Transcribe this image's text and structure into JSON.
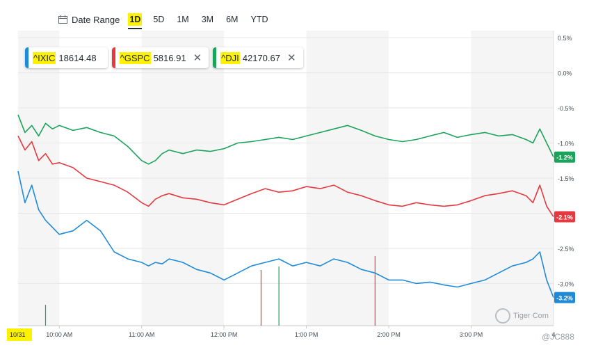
{
  "toolbar": {
    "date_range_label": "Date Range",
    "ranges": [
      "1D",
      "5D",
      "1M",
      "3M",
      "6M",
      "YTD"
    ],
    "active_range": "1D"
  },
  "chips": [
    {
      "symbol": "^IXIC",
      "value": "18614.48",
      "color": "#1f8ad8",
      "closable": false
    },
    {
      "symbol": "^GSPC",
      "value": "5816.91",
      "color": "#e5393f",
      "closable": true
    },
    {
      "symbol": "^DJI",
      "value": "42170.67",
      "color": "#1aa35a",
      "closable": true
    }
  ],
  "watermark": {
    "brand": "Tiger Com",
    "user": "@JC888"
  },
  "chart_data": {
    "type": "line",
    "title": "",
    "xlabel": "",
    "ylabel": "",
    "ylim": [
      -3.6,
      0.6
    ],
    "xlim": [
      "09:30",
      "16:00"
    ],
    "y_ticks": [
      0.5,
      0.0,
      -0.5,
      -1.0,
      -1.5,
      -2.0,
      -2.5,
      -3.0
    ],
    "y_tick_labels": [
      "0.5%",
      "0.0%",
      "-0.5%",
      "-1.0%",
      "-1.5%",
      "-2.0%",
      "-2.5%",
      "-3.0%"
    ],
    "x_ticks": [
      "10:00",
      "11:00",
      "12:00",
      "13:00",
      "14:00",
      "15:00"
    ],
    "x_tick_labels": [
      "10:00 AM",
      "11:00 AM",
      "12:00 PM",
      "1:00 PM",
      "2:00 PM",
      "3:00 PM"
    ],
    "x_start_label": "10/31",
    "x_end_label": "4",
    "shaded_hours": [
      "09:30-10:00",
      "11:00-12:00",
      "13:00-14:00",
      "15:00-16:00"
    ],
    "legend": "top-left",
    "series": [
      {
        "name": "^DJI",
        "color": "#1aa35a",
        "end_label": "-1.2%",
        "x": [
          "09:30",
          "09:35",
          "09:40",
          "09:45",
          "09:50",
          "09:55",
          "10:00",
          "10:10",
          "10:20",
          "10:30",
          "10:40",
          "10:50",
          "11:00",
          "11:05",
          "11:10",
          "11:15",
          "11:20",
          "11:30",
          "11:40",
          "11:50",
          "12:00",
          "12:10",
          "12:20",
          "12:30",
          "12:40",
          "12:50",
          "13:00",
          "13:10",
          "13:20",
          "13:30",
          "13:40",
          "13:50",
          "14:00",
          "14:10",
          "14:20",
          "14:30",
          "14:40",
          "14:50",
          "15:00",
          "15:10",
          "15:20",
          "15:30",
          "15:40",
          "15:45",
          "15:50",
          "15:55",
          "16:00"
        ],
        "values": [
          -0.6,
          -0.85,
          -0.75,
          -0.9,
          -0.72,
          -0.8,
          -0.75,
          -0.82,
          -0.78,
          -0.85,
          -0.9,
          -1.05,
          -1.25,
          -1.3,
          -1.25,
          -1.15,
          -1.1,
          -1.15,
          -1.1,
          -1.12,
          -1.08,
          -1.0,
          -0.98,
          -0.95,
          -0.92,
          -0.95,
          -0.9,
          -0.85,
          -0.8,
          -0.75,
          -0.82,
          -0.9,
          -0.95,
          -0.98,
          -0.95,
          -0.9,
          -0.85,
          -0.92,
          -0.88,
          -0.85,
          -0.9,
          -0.88,
          -0.95,
          -1.0,
          -0.8,
          -1.0,
          -1.2
        ]
      },
      {
        "name": "^GSPC",
        "color": "#e5393f",
        "end_label": "-2.1%",
        "x": [
          "09:30",
          "09:35",
          "09:40",
          "09:45",
          "09:50",
          "09:55",
          "10:00",
          "10:10",
          "10:20",
          "10:30",
          "10:40",
          "10:50",
          "11:00",
          "11:05",
          "11:10",
          "11:15",
          "11:20",
          "11:30",
          "11:40",
          "11:50",
          "12:00",
          "12:10",
          "12:20",
          "12:30",
          "12:40",
          "12:50",
          "13:00",
          "13:10",
          "13:20",
          "13:30",
          "13:40",
          "13:50",
          "14:00",
          "14:10",
          "14:20",
          "14:30",
          "14:40",
          "14:50",
          "15:00",
          "15:10",
          "15:20",
          "15:30",
          "15:40",
          "15:45",
          "15:50",
          "15:55",
          "16:00"
        ],
        "values": [
          -0.9,
          -1.1,
          -0.98,
          -1.25,
          -1.15,
          -1.3,
          -1.28,
          -1.35,
          -1.5,
          -1.55,
          -1.6,
          -1.7,
          -1.85,
          -1.9,
          -1.8,
          -1.75,
          -1.72,
          -1.78,
          -1.8,
          -1.85,
          -1.88,
          -1.8,
          -1.72,
          -1.65,
          -1.7,
          -1.68,
          -1.62,
          -1.65,
          -1.6,
          -1.7,
          -1.75,
          -1.82,
          -1.88,
          -1.9,
          -1.85,
          -1.88,
          -1.9,
          -1.88,
          -1.82,
          -1.75,
          -1.72,
          -1.68,
          -1.75,
          -1.85,
          -1.6,
          -1.9,
          -2.05
        ]
      },
      {
        "name": "^IXIC",
        "color": "#1f8ad8",
        "end_label": "-3.2%",
        "x": [
          "09:30",
          "09:35",
          "09:40",
          "09:45",
          "09:50",
          "09:55",
          "10:00",
          "10:10",
          "10:20",
          "10:30",
          "10:40",
          "10:50",
          "11:00",
          "11:05",
          "11:10",
          "11:15",
          "11:20",
          "11:30",
          "11:40",
          "11:50",
          "12:00",
          "12:10",
          "12:20",
          "12:30",
          "12:40",
          "12:50",
          "13:00",
          "13:10",
          "13:20",
          "13:30",
          "13:40",
          "13:50",
          "14:00",
          "14:10",
          "14:20",
          "14:30",
          "14:40",
          "14:50",
          "15:00",
          "15:10",
          "15:20",
          "15:30",
          "15:40",
          "15:45",
          "15:50",
          "15:55",
          "16:00"
        ],
        "values": [
          -1.4,
          -1.85,
          -1.6,
          -1.95,
          -2.1,
          -2.2,
          -2.3,
          -2.25,
          -2.1,
          -2.25,
          -2.55,
          -2.65,
          -2.7,
          -2.75,
          -2.7,
          -2.72,
          -2.65,
          -2.7,
          -2.8,
          -2.85,
          -2.95,
          -2.85,
          -2.75,
          -2.7,
          -2.65,
          -2.75,
          -2.7,
          -2.75,
          -2.65,
          -2.7,
          -2.8,
          -2.85,
          -2.95,
          -2.95,
          -3.0,
          -2.98,
          -3.02,
          -3.05,
          -3.0,
          -2.95,
          -2.85,
          -2.75,
          -2.7,
          -2.65,
          -2.55,
          -2.95,
          -3.2
        ]
      }
    ],
    "volume_bars": [
      {
        "x": "09:50",
        "color": "#1aa35a",
        "height": 0.3
      },
      {
        "x": "12:27",
        "color": "#e5393f",
        "height": 0.8
      },
      {
        "x": "12:40",
        "color": "#1aa35a",
        "height": 0.85
      },
      {
        "x": "13:50",
        "color": "#e5393f",
        "height": 1.0
      }
    ]
  }
}
